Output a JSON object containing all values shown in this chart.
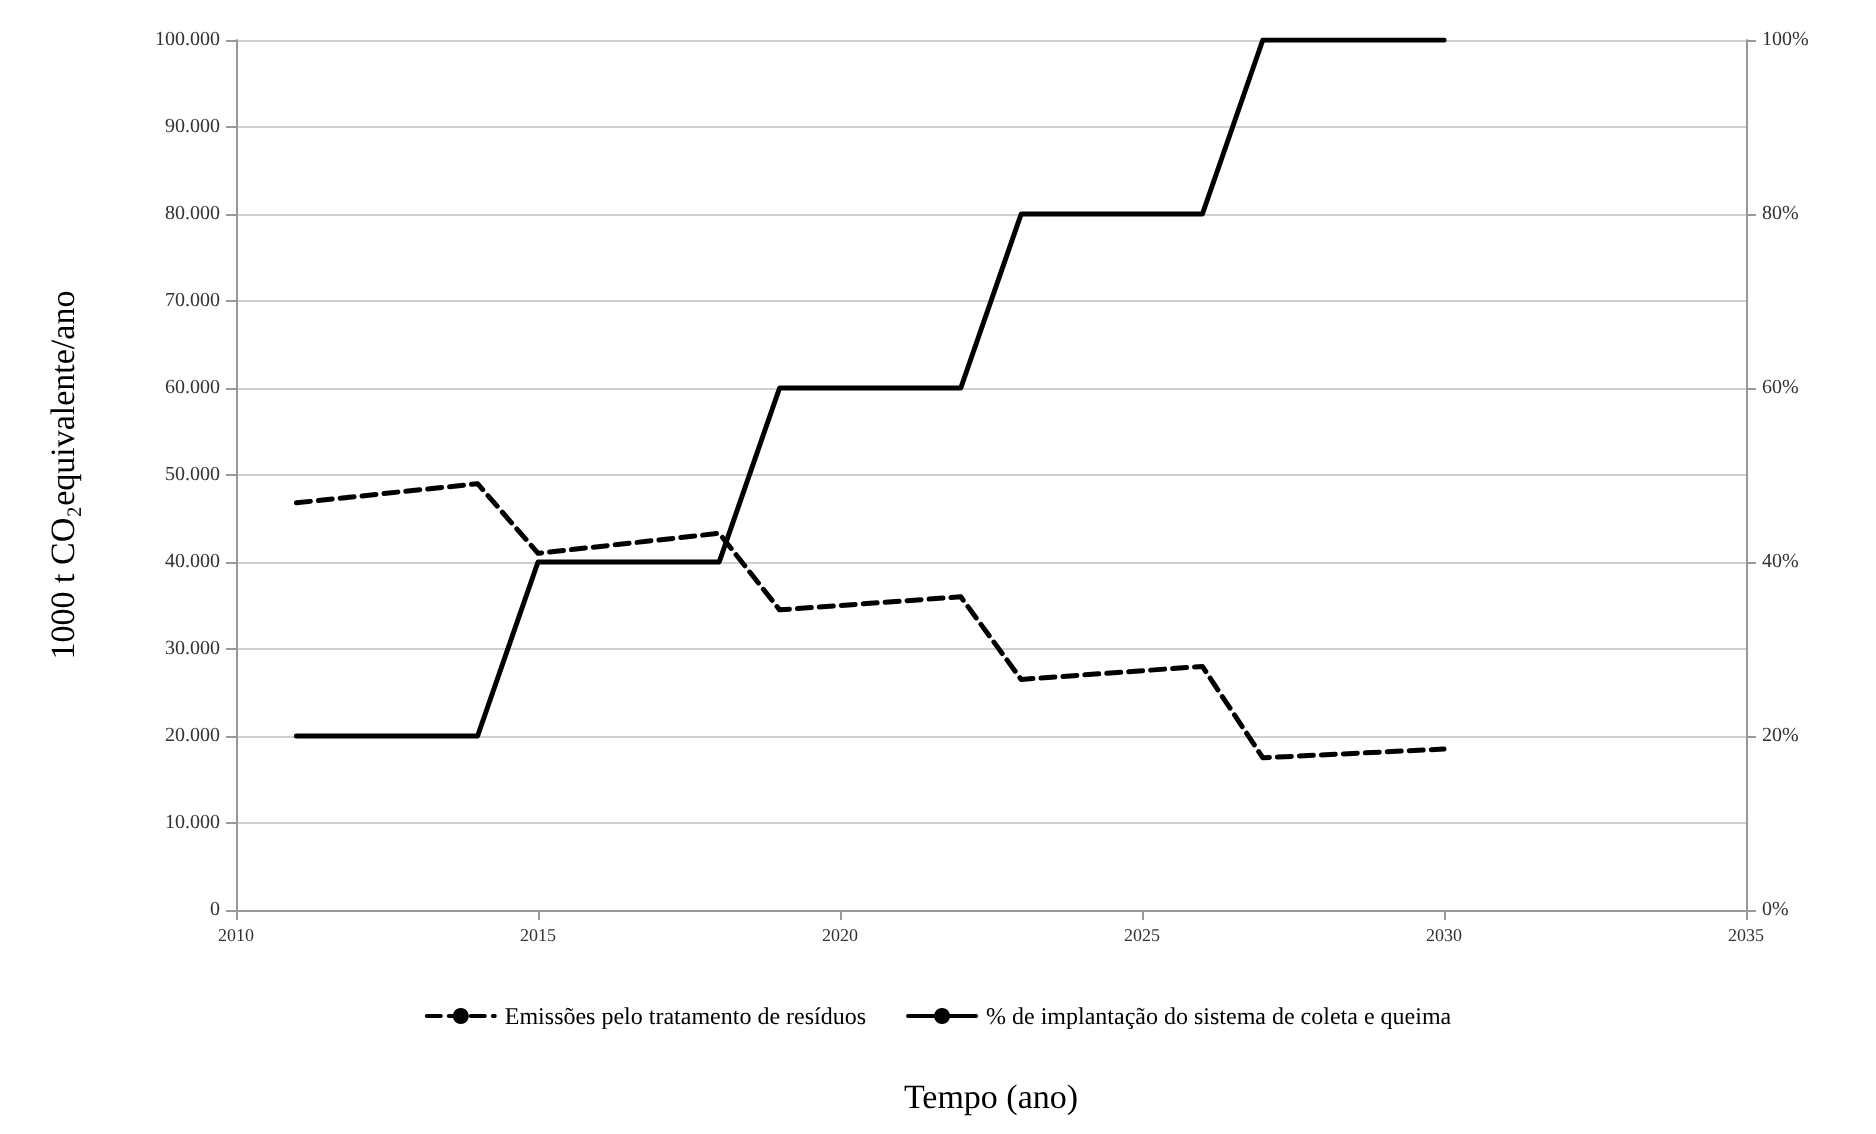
{
  "chart_data": {
    "type": "line",
    "xlabel": "Tempo (ano)",
    "ylabel": "1000 t CO₂equivalente/ano",
    "x": [
      2011,
      2014,
      2015,
      2018,
      2019,
      2022,
      2023,
      2026,
      2027,
      2030
    ],
    "series": [
      {
        "name": "Emissões pelo tratamento de resíduos",
        "color": "#000000",
        "line_style": "dashed",
        "values": [
          46800,
          49000,
          41000,
          43300,
          34500,
          36000,
          26500,
          28000,
          17500,
          18500
        ]
      },
      {
        "name": "% de implantação do sistema de coleta e queima",
        "color": "#000000",
        "line_style": "solid",
        "axis": "y2",
        "values": [
          20,
          20,
          40,
          40,
          60,
          60,
          80,
          80,
          100,
          100
        ]
      }
    ],
    "xlim": [
      2010,
      2035
    ],
    "xticks": [
      2010,
      2015,
      2020,
      2025,
      2030,
      2035
    ],
    "ylim": [
      0,
      100000
    ],
    "yticks": [
      0,
      {
        "value": 10000,
        "label": "10.000"
      },
      {
        "value": 20000,
        "label": "20.000"
      },
      {
        "value": 30000,
        "label": "30.000"
      },
      {
        "value": 40000,
        "label": "40.000"
      },
      {
        "value": 50000,
        "label": "50.000"
      },
      {
        "value": 60000,
        "label": "60.000"
      },
      {
        "value": 70000,
        "label": "70.000"
      },
      {
        "value": 80000,
        "label": "80.000"
      },
      {
        "value": 90000,
        "label": "90.000"
      },
      {
        "value": 100000,
        "label": "100.000"
      }
    ],
    "y2lim": [
      0,
      100
    ],
    "y2ticks": [
      {
        "value": 0,
        "label": "0%"
      },
      {
        "value": 20,
        "label": "20%"
      },
      {
        "value": 40,
        "label": "40%"
      },
      {
        "value": 60,
        "label": "60%"
      },
      {
        "value": 80,
        "label": "80%"
      },
      {
        "value": 100,
        "label": "100%"
      }
    ],
    "grid": "y",
    "legend": "bottom",
    "marker": "none"
  }
}
